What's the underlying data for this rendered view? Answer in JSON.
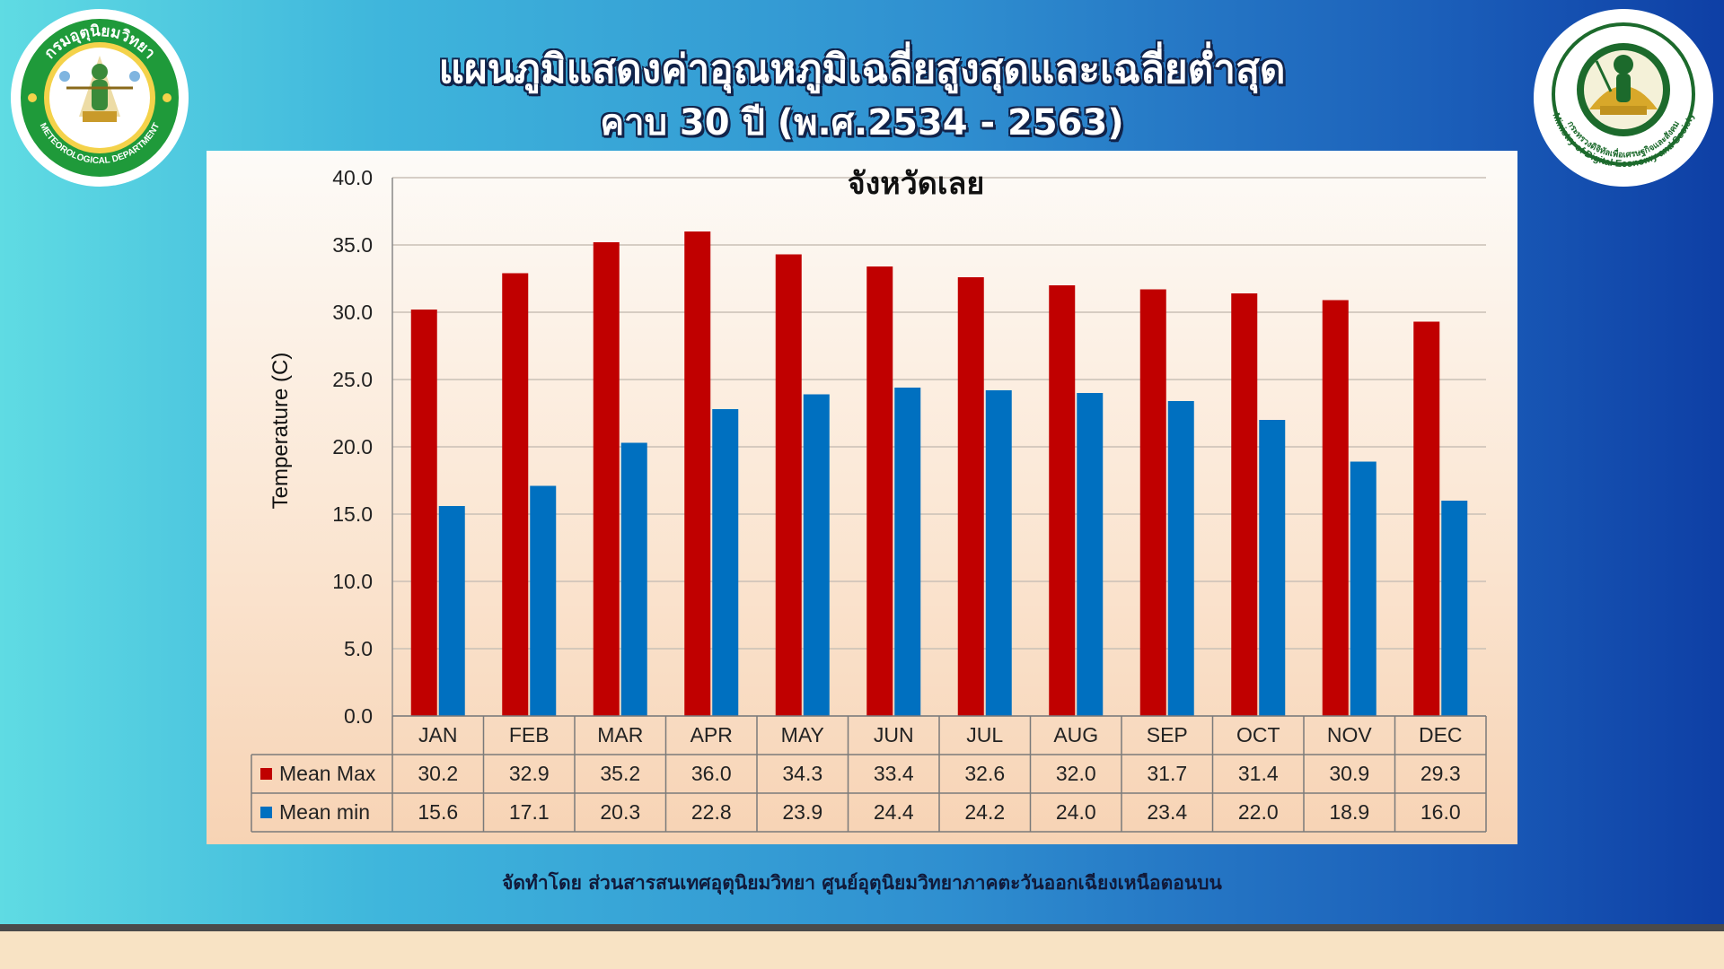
{
  "header": {
    "title": "แผนภูมิแสดงค่าอุณหภูมิเฉลี่ยสูงสุดและเฉลี่ยต่ำสุด",
    "subtitle": "คาบ 30 ปี (พ.ศ.2534 - 2563)"
  },
  "logos": {
    "left": {
      "arc_text": "กรมอุตุนิยมวิทยา",
      "bottom_text": "METEOROLOGICAL DEPARTMENT"
    },
    "right": {
      "arc_text": "กระทรวงดิจิทัลเพื่อเศรษฐกิจและสังคม",
      "bottom_text": "Ministry of Digital Economy and Society"
    }
  },
  "chart_data": {
    "type": "bar",
    "title": "จังหวัดเลย",
    "ylabel": "Temperature (C)",
    "xlabel": "",
    "ylim": [
      0,
      40
    ],
    "ytick_labels": [
      "0.0",
      "5.0",
      "10.0",
      "15.0",
      "20.0",
      "25.0",
      "30.0",
      "35.0",
      "40.0"
    ],
    "grid": true,
    "legend": "data-table",
    "categories": [
      "JAN",
      "FEB",
      "MAR",
      "APR",
      "MAY",
      "JUN",
      "JUL",
      "AUG",
      "SEP",
      "OCT",
      "NOV",
      "DEC"
    ],
    "series": [
      {
        "name": "Mean Max",
        "color": "#c00000",
        "values": [
          30.2,
          32.9,
          35.2,
          36.0,
          34.3,
          33.4,
          32.6,
          32.0,
          31.7,
          31.4,
          30.9,
          29.3
        ],
        "labels": [
          "30.2",
          "32.9",
          "35.2",
          "36.0",
          "34.3",
          "33.4",
          "32.6",
          "32.0",
          "31.7",
          "31.4",
          "30.9",
          "29.3"
        ]
      },
      {
        "name": "Mean min",
        "color": "#0070c0",
        "values": [
          15.6,
          17.1,
          20.3,
          22.8,
          23.9,
          24.4,
          24.2,
          24.0,
          23.4,
          22.0,
          18.9,
          16.0
        ],
        "labels": [
          "15.6",
          "17.1",
          "20.3",
          "22.8",
          "23.9",
          "24.4",
          "24.2",
          "24.0",
          "23.4",
          "22.0",
          "18.9",
          "16.0"
        ]
      }
    ]
  },
  "footer": {
    "credit": "จัดทำโดย ส่วนสารสนเทศอุตุนิยมวิทยา ศูนย์อุตุนิยมวิทยาภาคตะวันออกเฉียงเหนือตอนบน"
  },
  "colors": {
    "banner_start": "#5fdbe3",
    "banner_end": "#0e3fa5",
    "footer_band": "#f8e3c4",
    "max_bar": "#c00000",
    "min_bar": "#0070c0"
  }
}
